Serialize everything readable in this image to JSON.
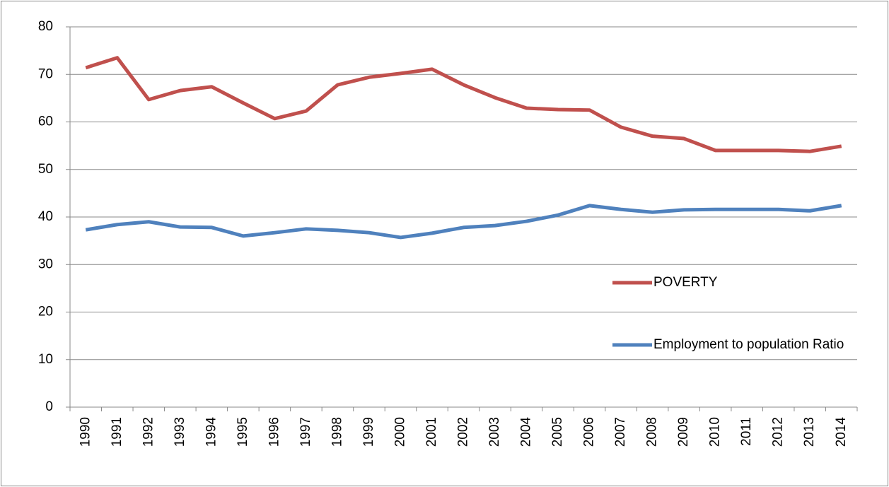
{
  "chart_data": {
    "type": "line",
    "categories": [
      "1990",
      "1991",
      "1992",
      "1993",
      "1994",
      "1995",
      "1996",
      "1997",
      "1998",
      "1999",
      "2000",
      "2001",
      "2002",
      "2003",
      "2004",
      "2005",
      "2006",
      "2007",
      "2008",
      "2009",
      "2010",
      "2011",
      "2012",
      "2013",
      "2014"
    ],
    "series": [
      {
        "name": "POVERTY",
        "color": "#c0504d",
        "values": [
          71.4,
          73.5,
          64.7,
          66.6,
          67.4,
          64.0,
          60.7,
          62.3,
          67.8,
          69.4,
          70.2,
          71.1,
          67.8,
          65.1,
          62.9,
          62.6,
          62.5,
          58.9,
          57.0,
          56.5,
          54.0,
          54.0,
          54.0,
          53.8,
          54.9
        ]
      },
      {
        "name": "Employment to population Ratio",
        "color": "#4f81bd",
        "values": [
          37.3,
          38.4,
          39.0,
          37.9,
          37.8,
          36.0,
          36.7,
          37.5,
          37.2,
          36.7,
          35.7,
          36.6,
          37.8,
          38.2,
          39.1,
          40.4,
          42.4,
          41.6,
          41.0,
          41.5,
          41.6,
          41.6,
          41.6,
          41.3,
          42.4
        ]
      }
    ],
    "ylim": [
      0,
      80
    ],
    "yticks": [
      0,
      10,
      20,
      30,
      40,
      50,
      60,
      70,
      80
    ],
    "grid": true,
    "legend": "right"
  }
}
